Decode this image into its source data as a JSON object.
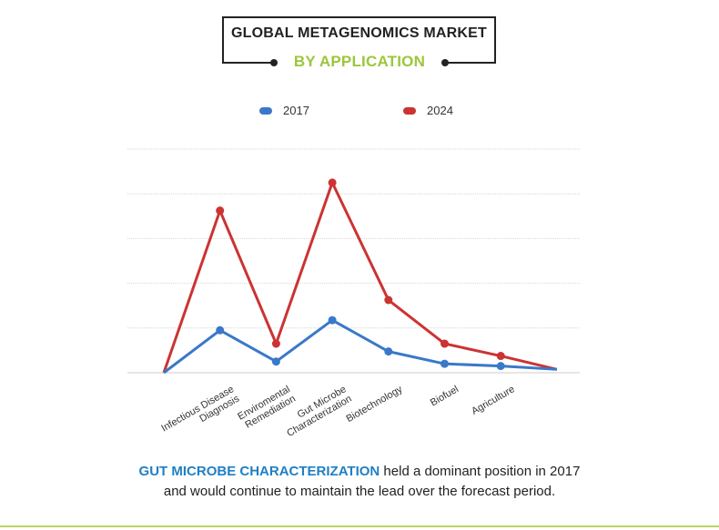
{
  "title": "GLOBAL METAGENOMICS MARKET",
  "subtitle": "BY APPLICATION",
  "caption": {
    "highlight": "GUT MICROBE CHARACTERIZATION",
    "rest_line1": " held a dominant position in 2017",
    "line2": "and would continue to maintain the lead over the forecast period."
  },
  "colors": {
    "series_2017": "#3a78c9",
    "series_2024": "#cc3333",
    "accent": "#9cc63b",
    "highlight": "#1f7fc4"
  },
  "chart_data": {
    "type": "line",
    "categories": [
      "",
      "Infectious Disease\nDiagnosis",
      "Enviromental\nRemediation",
      "Gut Microbe\nCharacterization",
      "Biotechnology",
      "Biofuel",
      "Agriculture",
      ""
    ],
    "series": [
      {
        "name": "2017",
        "values": [
          0,
          38,
          10,
          47,
          19,
          8,
          6,
          3
        ]
      },
      {
        "name": "2024",
        "values": [
          0,
          145,
          26,
          170,
          65,
          26,
          15,
          3
        ]
      }
    ],
    "ylim": [
      0,
      200
    ],
    "grid": true,
    "legend": "top-center",
    "xlabel": "",
    "ylabel": ""
  }
}
